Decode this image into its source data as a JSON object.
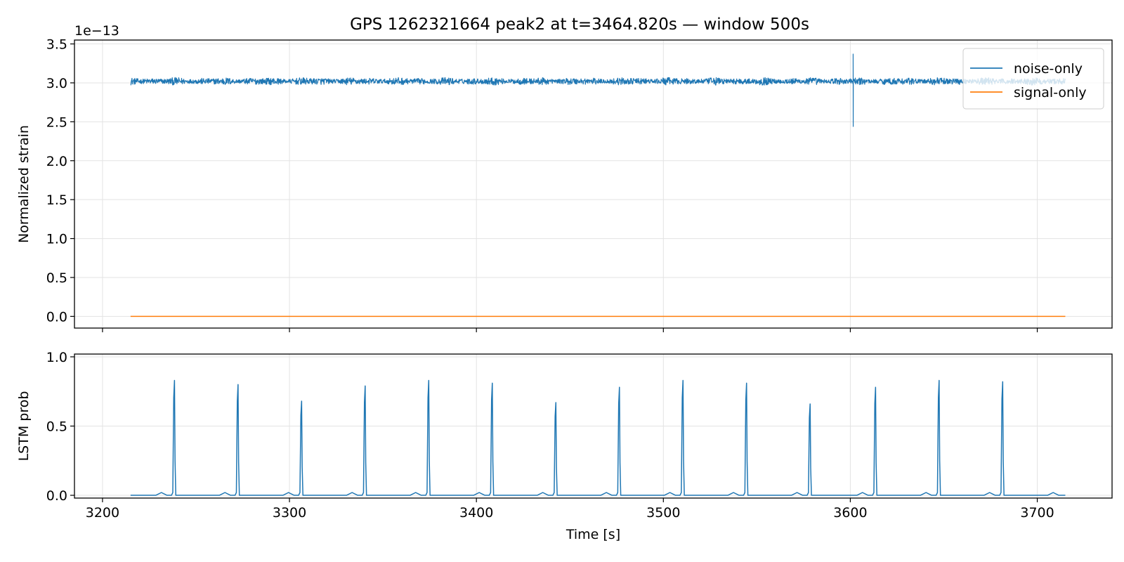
{
  "chart_data": [
    {
      "type": "line",
      "title": "GPS 1262321664 peak2 at t=3464.820s — window 500s",
      "xlabel": "",
      "ylabel": "Normalized strain",
      "offset_label": "1e−13",
      "xlim": [
        3185,
        3740
      ],
      "ylim": [
        -0.15,
        3.55
      ],
      "xticks": [
        3200,
        3300,
        3400,
        3500,
        3600,
        3700
      ],
      "yticks": [
        0.0,
        0.5,
        1.0,
        1.5,
        2.0,
        2.5,
        3.0,
        3.5
      ],
      "ytick_labels": [
        "0.0",
        "0.5",
        "1.0",
        "1.5",
        "2.0",
        "2.5",
        "3.0",
        "3.5"
      ],
      "grid": true,
      "legend_position": "top-right",
      "series": [
        {
          "name": "noise-only",
          "color": "#1f77b4",
          "x_range": [
            3215,
            3715
          ],
          "baseline": 3.02,
          "noise_amplitude": 0.05,
          "glitch": {
            "x": 3601.5,
            "max": 3.37,
            "min": 2.44
          }
        },
        {
          "name": "signal-only",
          "color": "#ff7f0e",
          "x": [
            3215,
            3715
          ],
          "values": [
            0.0,
            0.0
          ]
        }
      ]
    },
    {
      "type": "line",
      "title": "",
      "xlabel": "Time [s]",
      "ylabel": "LSTM prob",
      "xlim": [
        3185,
        3740
      ],
      "ylim": [
        -0.02,
        1.02
      ],
      "xticks": [
        3200,
        3300,
        3400,
        3500,
        3600,
        3700
      ],
      "xtick_labels": [
        "3200",
        "3300",
        "3400",
        "3500",
        "3600",
        "3700"
      ],
      "yticks": [
        0.0,
        0.5,
        1.0
      ],
      "ytick_labels": [
        "0.0",
        "0.5",
        "1.0"
      ],
      "grid": true,
      "series": [
        {
          "color": "#1f77b4",
          "x_range": [
            3215,
            3715
          ],
          "baseline": 0.0,
          "peaks": [
            {
              "x": 3238.5,
              "value": 0.83
            },
            {
              "x": 3272.5,
              "value": 0.8
            },
            {
              "x": 3306.5,
              "value": 0.68
            },
            {
              "x": 3340.5,
              "value": 0.79
            },
            {
              "x": 3374.5,
              "value": 0.83
            },
            {
              "x": 3408.5,
              "value": 0.81
            },
            {
              "x": 3442.5,
              "value": 0.67
            },
            {
              "x": 3476.5,
              "value": 0.78
            },
            {
              "x": 3510.5,
              "value": 0.83
            },
            {
              "x": 3544.5,
              "value": 0.81
            },
            {
              "x": 3578.5,
              "value": 0.66
            },
            {
              "x": 3613.5,
              "value": 0.78
            },
            {
              "x": 3647.5,
              "value": 0.83
            },
            {
              "x": 3681.5,
              "value": 0.82
            }
          ],
          "bumps": [
            {
              "x": 3231.5,
              "value": 0.02
            },
            {
              "x": 3265.5,
              "value": 0.02
            },
            {
              "x": 3299.5,
              "value": 0.02
            },
            {
              "x": 3333.5,
              "value": 0.02
            },
            {
              "x": 3367.5,
              "value": 0.02
            },
            {
              "x": 3401.5,
              "value": 0.02
            },
            {
              "x": 3435.5,
              "value": 0.02
            },
            {
              "x": 3469.5,
              "value": 0.02
            },
            {
              "x": 3503.5,
              "value": 0.02
            },
            {
              "x": 3537.5,
              "value": 0.02
            },
            {
              "x": 3571.5,
              "value": 0.02
            },
            {
              "x": 3606.5,
              "value": 0.02
            },
            {
              "x": 3640.5,
              "value": 0.02
            },
            {
              "x": 3674.5,
              "value": 0.02
            },
            {
              "x": 3708.5,
              "value": 0.02
            }
          ]
        }
      ]
    }
  ]
}
